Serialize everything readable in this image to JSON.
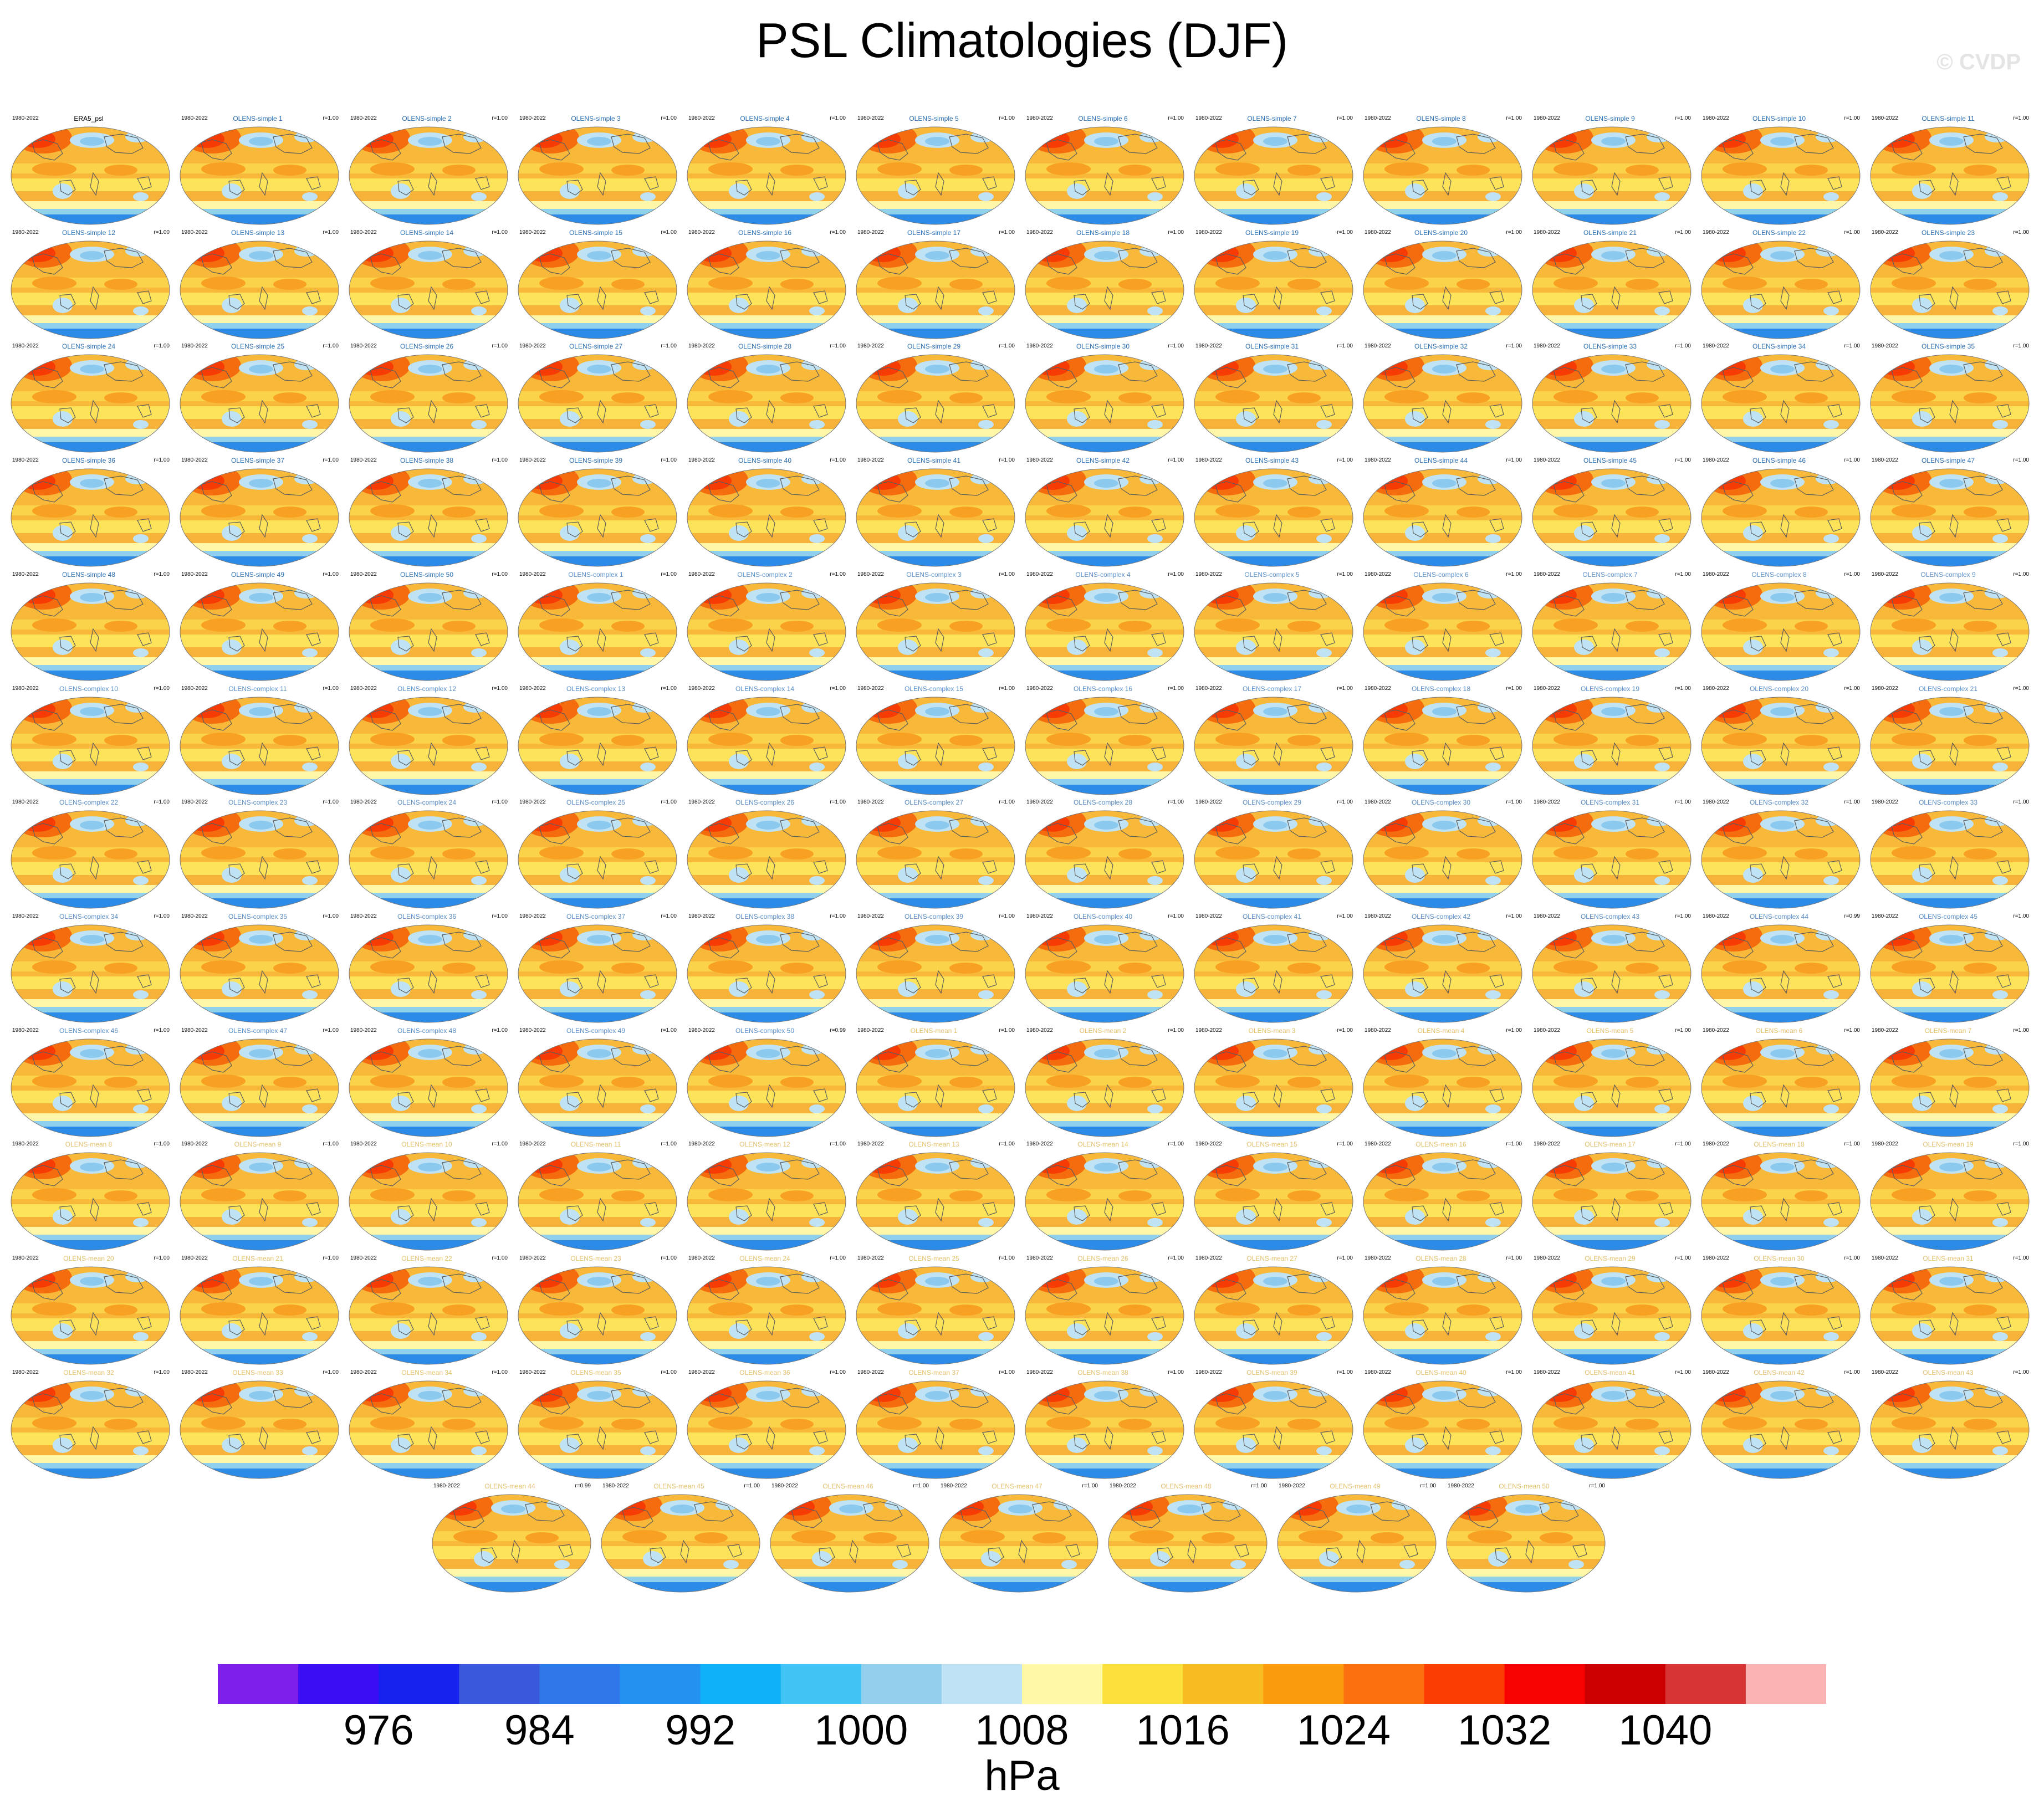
{
  "title": "PSL Climatologies (DJF)",
  "watermark": "© CVDP",
  "colors": {
    "name_simple": "#2a6fb4",
    "name_complex": "#5a8fc8",
    "name_mean": "#e3c06a",
    "name_obs": "#000000",
    "coast": "#5c5c5c"
  },
  "chart_data": {
    "type": "heatmap",
    "description_fields": "panel grid of sea level pressure climatology maps",
    "date_range": "1980-2022",
    "panels": [
      {
        "name": "ERA5_psl",
        "r": ""
      },
      {
        "name": "OLENS-simple 1",
        "r": "r=1.00"
      },
      {
        "name": "OLENS-simple 2",
        "r": "r=1.00"
      },
      {
        "name": "OLENS-simple 3",
        "r": "r=1.00"
      },
      {
        "name": "OLENS-simple 4",
        "r": "r=1.00"
      },
      {
        "name": "OLENS-simple 5",
        "r": "r=1.00"
      },
      {
        "name": "OLENS-simple 6",
        "r": "r=1.00"
      },
      {
        "name": "OLENS-simple 7",
        "r": "r=1.00"
      },
      {
        "name": "OLENS-simple 8",
        "r": "r=1.00"
      },
      {
        "name": "OLENS-simple 9",
        "r": "r=1.00"
      },
      {
        "name": "OLENS-simple 10",
        "r": "r=1.00"
      },
      {
        "name": "OLENS-simple 11",
        "r": "r=1.00"
      },
      {
        "name": "OLENS-simple 12",
        "r": "r=1.00"
      },
      {
        "name": "OLENS-simple 13",
        "r": "r=1.00"
      },
      {
        "name": "OLENS-simple 14",
        "r": "r=1.00"
      },
      {
        "name": "OLENS-simple 15",
        "r": "r=1.00"
      },
      {
        "name": "OLENS-simple 16",
        "r": "r=1.00"
      },
      {
        "name": "OLENS-simple 17",
        "r": "r=1.00"
      },
      {
        "name": "OLENS-simple 18",
        "r": "r=1.00"
      },
      {
        "name": "OLENS-simple 19",
        "r": "r=1.00"
      },
      {
        "name": "OLENS-simple 20",
        "r": "r=1.00"
      },
      {
        "name": "OLENS-simple 21",
        "r": "r=1.00"
      },
      {
        "name": "OLENS-simple 22",
        "r": "r=1.00"
      },
      {
        "name": "OLENS-simple 23",
        "r": "r=1.00"
      },
      {
        "name": "OLENS-simple 24",
        "r": "r=1.00"
      },
      {
        "name": "OLENS-simple 25",
        "r": "r=1.00"
      },
      {
        "name": "OLENS-simple 26",
        "r": "r=1.00"
      },
      {
        "name": "OLENS-simple 27",
        "r": "r=1.00"
      },
      {
        "name": "OLENS-simple 28",
        "r": "r=1.00"
      },
      {
        "name": "OLENS-simple 29",
        "r": "r=1.00"
      },
      {
        "name": "OLENS-simple 30",
        "r": "r=1.00"
      },
      {
        "name": "OLENS-simple 31",
        "r": "r=1.00"
      },
      {
        "name": "OLENS-simple 32",
        "r": "r=1.00"
      },
      {
        "name": "OLENS-simple 33",
        "r": "r=1.00"
      },
      {
        "name": "OLENS-simple 34",
        "r": "r=1.00"
      },
      {
        "name": "OLENS-simple 35",
        "r": "r=1.00"
      },
      {
        "name": "OLENS-simple 36",
        "r": "r=1.00"
      },
      {
        "name": "OLENS-simple 37",
        "r": "r=1.00"
      },
      {
        "name": "OLENS-simple 38",
        "r": "r=1.00"
      },
      {
        "name": "OLENS-simple 39",
        "r": "r=1.00"
      },
      {
        "name": "OLENS-simple 40",
        "r": "r=1.00"
      },
      {
        "name": "OLENS-simple 41",
        "r": "r=1.00"
      },
      {
        "name": "OLENS-simple 42",
        "r": "r=1.00"
      },
      {
        "name": "OLENS-simple 43",
        "r": "r=1.00"
      },
      {
        "name": "OLENS-simple 44",
        "r": "r=1.00"
      },
      {
        "name": "OLENS-simple 45",
        "r": "r=1.00"
      },
      {
        "name": "OLENS-simple 46",
        "r": "r=1.00"
      },
      {
        "name": "OLENS-simple 47",
        "r": "r=1.00"
      },
      {
        "name": "OLENS-simple 48",
        "r": "r=1.00"
      },
      {
        "name": "OLENS-simple 49",
        "r": "r=1.00"
      },
      {
        "name": "OLENS-simple 50",
        "r": "r=1.00"
      },
      {
        "name": "OLENS-complex 1",
        "r": "r=1.00"
      },
      {
        "name": "OLENS-complex 2",
        "r": "r=1.00"
      },
      {
        "name": "OLENS-complex 3",
        "r": "r=1.00"
      },
      {
        "name": "OLENS-complex 4",
        "r": "r=1.00"
      },
      {
        "name": "OLENS-complex 5",
        "r": "r=1.00"
      },
      {
        "name": "OLENS-complex 6",
        "r": "r=1.00"
      },
      {
        "name": "OLENS-complex 7",
        "r": "r=1.00"
      },
      {
        "name": "OLENS-complex 8",
        "r": "r=1.00"
      },
      {
        "name": "OLENS-complex 9",
        "r": "r=1.00"
      },
      {
        "name": "OLENS-complex 10",
        "r": "r=1.00"
      },
      {
        "name": "OLENS-complex 11",
        "r": "r=1.00"
      },
      {
        "name": "OLENS-complex 12",
        "r": "r=1.00"
      },
      {
        "name": "OLENS-complex 13",
        "r": "r=1.00"
      },
      {
        "name": "OLENS-complex 14",
        "r": "r=1.00"
      },
      {
        "name": "OLENS-complex 15",
        "r": "r=1.00"
      },
      {
        "name": "OLENS-complex 16",
        "r": "r=1.00"
      },
      {
        "name": "OLENS-complex 17",
        "r": "r=1.00"
      },
      {
        "name": "OLENS-complex 18",
        "r": "r=1.00"
      },
      {
        "name": "OLENS-complex 19",
        "r": "r=1.00"
      },
      {
        "name": "OLENS-complex 20",
        "r": "r=1.00"
      },
      {
        "name": "OLENS-complex 21",
        "r": "r=1.00"
      },
      {
        "name": "OLENS-complex 22",
        "r": "r=1.00"
      },
      {
        "name": "OLENS-complex 23",
        "r": "r=1.00"
      },
      {
        "name": "OLENS-complex 24",
        "r": "r=1.00"
      },
      {
        "name": "OLENS-complex 25",
        "r": "r=1.00"
      },
      {
        "name": "OLENS-complex 26",
        "r": "r=1.00"
      },
      {
        "name": "OLENS-complex 27",
        "r": "r=1.00"
      },
      {
        "name": "OLENS-complex 28",
        "r": "r=1.00"
      },
      {
        "name": "OLENS-complex 29",
        "r": "r=1.00"
      },
      {
        "name": "OLENS-complex 30",
        "r": "r=1.00"
      },
      {
        "name": "OLENS-complex 31",
        "r": "r=1.00"
      },
      {
        "name": "OLENS-complex 32",
        "r": "r=1.00"
      },
      {
        "name": "OLENS-complex 33",
        "r": "r=1.00"
      },
      {
        "name": "OLENS-complex 34",
        "r": "r=1.00"
      },
      {
        "name": "OLENS-complex 35",
        "r": "r=1.00"
      },
      {
        "name": "OLENS-complex 36",
        "r": "r=1.00"
      },
      {
        "name": "OLENS-complex 37",
        "r": "r=1.00"
      },
      {
        "name": "OLENS-complex 38",
        "r": "r=1.00"
      },
      {
        "name": "OLENS-complex 39",
        "r": "r=1.00"
      },
      {
        "name": "OLENS-complex 40",
        "r": "r=1.00"
      },
      {
        "name": "OLENS-complex 41",
        "r": "r=1.00"
      },
      {
        "name": "OLENS-complex 42",
        "r": "r=1.00"
      },
      {
        "name": "OLENS-complex 43",
        "r": "r=1.00"
      },
      {
        "name": "OLENS-complex 44",
        "r": "r=0.99"
      },
      {
        "name": "OLENS-complex 45",
        "r": "r=1.00"
      },
      {
        "name": "OLENS-complex 46",
        "r": "r=1.00"
      },
      {
        "name": "OLENS-complex 47",
        "r": "r=1.00"
      },
      {
        "name": "OLENS-complex 48",
        "r": "r=1.00"
      },
      {
        "name": "OLENS-complex 49",
        "r": "r=1.00"
      },
      {
        "name": "OLENS-complex 50",
        "r": "r=0.99"
      },
      {
        "name": "OLENS-mean 1",
        "r": "r=1.00"
      },
      {
        "name": "OLENS-mean 2",
        "r": "r=1.00"
      },
      {
        "name": "OLENS-mean 3",
        "r": "r=1.00"
      },
      {
        "name": "OLENS-mean 4",
        "r": "r=1.00"
      },
      {
        "name": "OLENS-mean 5",
        "r": "r=1.00"
      },
      {
        "name": "OLENS-mean 6",
        "r": "r=1.00"
      },
      {
        "name": "OLENS-mean 7",
        "r": "r=1.00"
      },
      {
        "name": "OLENS-mean 8",
        "r": "r=1.00"
      },
      {
        "name": "OLENS-mean 9",
        "r": "r=1.00"
      },
      {
        "name": "OLENS-mean 10",
        "r": "r=1.00"
      },
      {
        "name": "OLENS-mean 11",
        "r": "r=1.00"
      },
      {
        "name": "OLENS-mean 12",
        "r": "r=1.00"
      },
      {
        "name": "OLENS-mean 13",
        "r": "r=1.00"
      },
      {
        "name": "OLENS-mean 14",
        "r": "r=1.00"
      },
      {
        "name": "OLENS-mean 15",
        "r": "r=1.00"
      },
      {
        "name": "OLENS-mean 16",
        "r": "r=1.00"
      },
      {
        "name": "OLENS-mean 17",
        "r": "r=1.00"
      },
      {
        "name": "OLENS-mean 18",
        "r": "r=1.00"
      },
      {
        "name": "OLENS-mean 19",
        "r": "r=1.00"
      },
      {
        "name": "OLENS-mean 20",
        "r": "r=1.00"
      },
      {
        "name": "OLENS-mean 21",
        "r": "r=1.00"
      },
      {
        "name": "OLENS-mean 22",
        "r": "r=1.00"
      },
      {
        "name": "OLENS-mean 23",
        "r": "r=1.00"
      },
      {
        "name": "OLENS-mean 24",
        "r": "r=1.00"
      },
      {
        "name": "OLENS-mean 25",
        "r": "r=1.00"
      },
      {
        "name": "OLENS-mean 26",
        "r": "r=1.00"
      },
      {
        "name": "OLENS-mean 27",
        "r": "r=1.00"
      },
      {
        "name": "OLENS-mean 28",
        "r": "r=1.00"
      },
      {
        "name": "OLENS-mean 29",
        "r": "r=1.00"
      },
      {
        "name": "OLENS-mean 30",
        "r": "r=1.00"
      },
      {
        "name": "OLENS-mean 31",
        "r": "r=1.00"
      },
      {
        "name": "OLENS-mean 32",
        "r": "r=1.00"
      },
      {
        "name": "OLENS-mean 33",
        "r": "r=1.00"
      },
      {
        "name": "OLENS-mean 34",
        "r": "r=1.00"
      },
      {
        "name": "OLENS-mean 35",
        "r": "r=1.00"
      },
      {
        "name": "OLENS-mean 36",
        "r": "r=1.00"
      },
      {
        "name": "OLENS-mean 37",
        "r": "r=1.00"
      },
      {
        "name": "OLENS-mean 38",
        "r": "r=1.00"
      },
      {
        "name": "OLENS-mean 39",
        "r": "r=1.00"
      },
      {
        "name": "OLENS-mean 40",
        "r": "r=1.00"
      },
      {
        "name": "OLENS-mean 41",
        "r": "r=1.00"
      },
      {
        "name": "OLENS-mean 42",
        "r": "r=1.00"
      },
      {
        "name": "OLENS-mean 43",
        "r": "r=1.00"
      },
      {
        "name": "OLENS-mean 44",
        "r": "r=0.99"
      },
      {
        "name": "OLENS-mean 45",
        "r": "r=1.00"
      },
      {
        "name": "OLENS-mean 46",
        "r": "r=1.00"
      },
      {
        "name": "OLENS-mean 47",
        "r": "r=1.00"
      },
      {
        "name": "OLENS-mean 48",
        "r": "r=1.00"
      },
      {
        "name": "OLENS-mean 49",
        "r": "r=1.00"
      },
      {
        "name": "OLENS-mean 50",
        "r": "r=1.00"
      }
    ],
    "colorbar": {
      "units": "hPa",
      "ticks": [
        "976",
        "984",
        "992",
        "1000",
        "1008",
        "1016",
        "1024",
        "1032",
        "1040"
      ],
      "colors": [
        "#7f1fec",
        "#3b0df5",
        "#1722ee",
        "#3a58dc",
        "#2f76e8",
        "#2491f0",
        "#0fb2f7",
        "#41c3f3",
        "#92d0ee",
        "#bfe2f4",
        "#fff8a6",
        "#fce13c",
        "#f7bc22",
        "#f99b0a",
        "#fb710f",
        "#fb3c03",
        "#f70101",
        "#cc0000",
        "#d73434",
        "#fbb3b3"
      ]
    }
  }
}
